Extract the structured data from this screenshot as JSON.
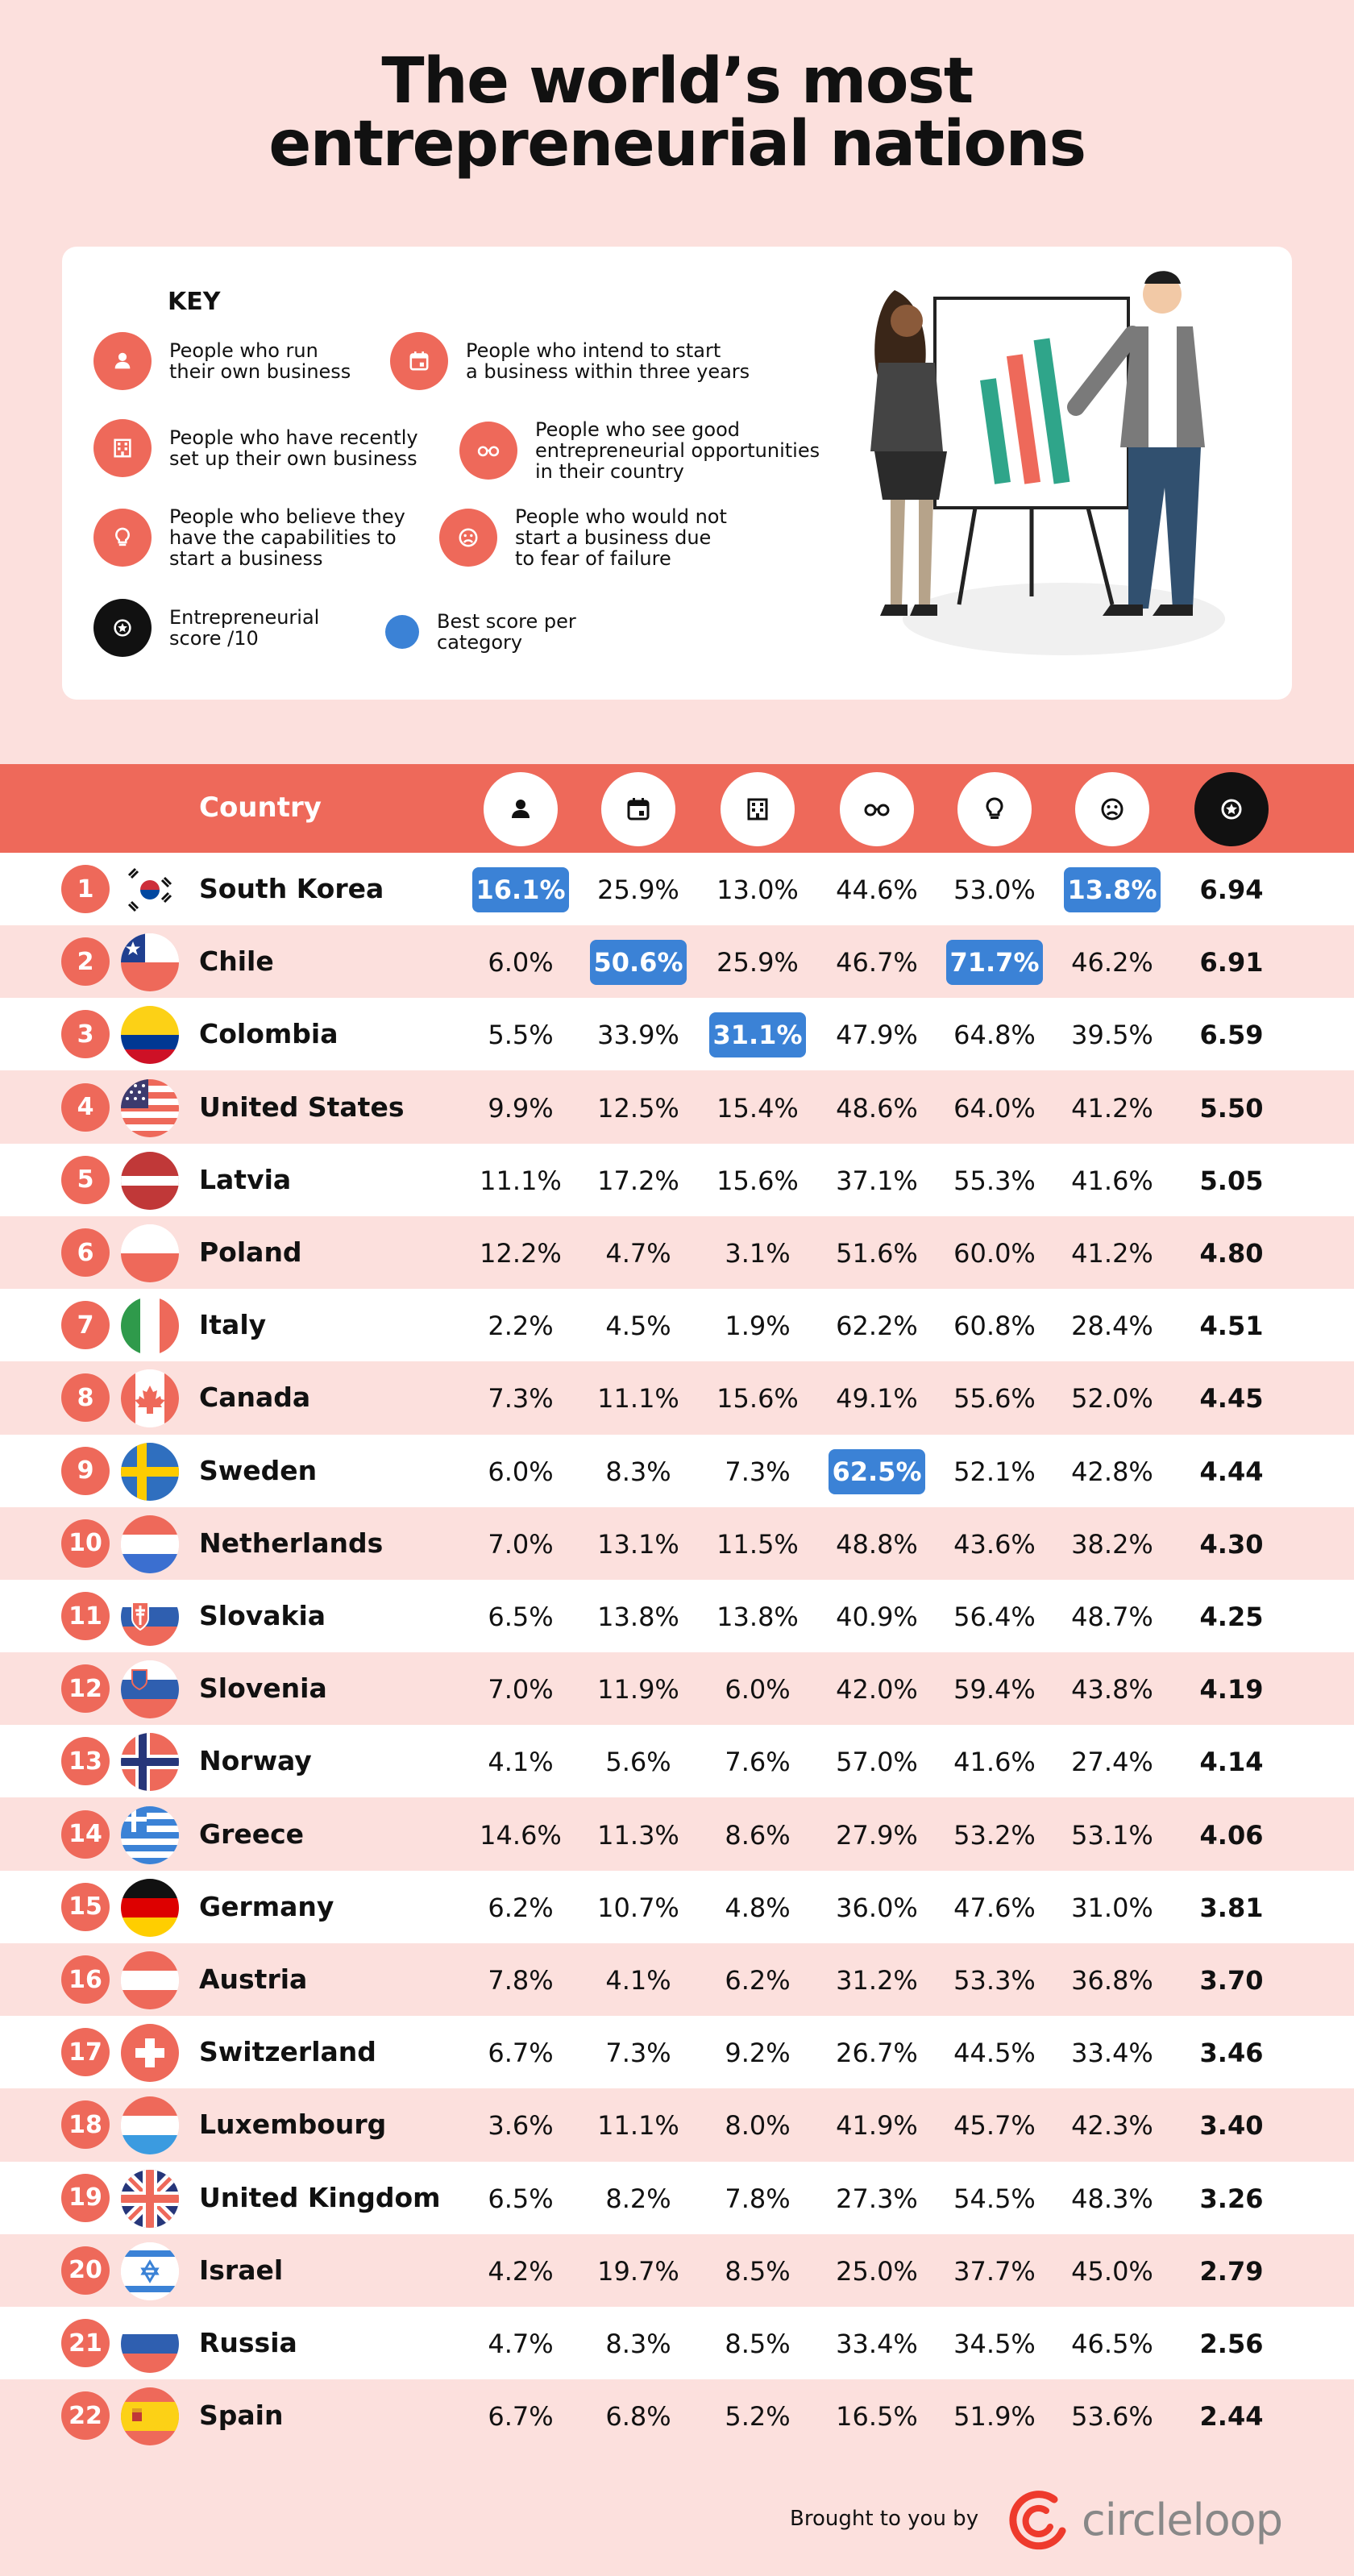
{
  "title_line1": "The world’s most",
  "title_line2": "entrepreneurial nations",
  "key": {
    "heading": "KEY",
    "items": [
      {
        "icon": "person-icon",
        "text": "People who run\ntheir own business"
      },
      {
        "icon": "calendar-icon",
        "text": "People who intend to start\na business within three years"
      },
      {
        "icon": "building-icon",
        "text": "People who have recently\nset up their own business"
      },
      {
        "icon": "glasses-icon",
        "text": "People who see good\nentrepreneurial opportunities\nin their country"
      },
      {
        "icon": "lightbulb-icon",
        "text": "People who believe they\nhave the capabilities to\nstart a business"
      },
      {
        "icon": "worried-face-icon",
        "text": "People who would not\nstart a business due\nto fear of failure"
      },
      {
        "icon": "star-badge-icon",
        "text": "Entrepreneurial\nscore /10"
      },
      {
        "icon": "blue-dot-icon",
        "text": "Best score per\ncategory"
      }
    ]
  },
  "colors": {
    "accent": "#ee695a",
    "pink_bg": "#fce0dd",
    "best": "#3b82d6",
    "black": "#111111"
  },
  "table_header": {
    "country_label": "Country"
  },
  "chart_data": {
    "type": "table",
    "columns": [
      "run_own_business",
      "intend_to_start_within_three_years",
      "recently_set_up",
      "see_good_opportunities",
      "believe_capabilities",
      "fear_of_failure",
      "entrepreneurial_score"
    ],
    "column_icons": [
      "person-icon",
      "calendar-icon",
      "building-icon",
      "glasses-icon",
      "lightbulb-icon",
      "worried-face-icon",
      "star-badge-icon"
    ],
    "rows": [
      {
        "rank": "1",
        "country": "South Korea",
        "flag": "south-korea-flag-icon",
        "values": [
          "16.1%",
          "25.9%",
          "13.0%",
          "44.6%",
          "53.0%",
          "13.8%",
          "6.94"
        ],
        "best": [
          0,
          5
        ]
      },
      {
        "rank": "2",
        "country": "Chile",
        "flag": "chile-flag-icon",
        "values": [
          "6.0%",
          "50.6%",
          "25.9%",
          "46.7%",
          "71.7%",
          "46.2%",
          "6.91"
        ],
        "best": [
          1,
          4
        ]
      },
      {
        "rank": "3",
        "country": "Colombia",
        "flag": "colombia-flag-icon",
        "values": [
          "5.5%",
          "33.9%",
          "31.1%",
          "47.9%",
          "64.8%",
          "39.5%",
          "6.59"
        ],
        "best": [
          2
        ]
      },
      {
        "rank": "4",
        "country": "United States",
        "flag": "united-states-flag-icon",
        "values": [
          "9.9%",
          "12.5%",
          "15.4%",
          "48.6%",
          "64.0%",
          "41.2%",
          "5.50"
        ],
        "best": []
      },
      {
        "rank": "5",
        "country": "Latvia",
        "flag": "latvia-flag-icon",
        "values": [
          "11.1%",
          "17.2%",
          "15.6%",
          "37.1%",
          "55.3%",
          "41.6%",
          "5.05"
        ],
        "best": []
      },
      {
        "rank": "6",
        "country": "Poland",
        "flag": "poland-flag-icon",
        "values": [
          "12.2%",
          "4.7%",
          "3.1%",
          "51.6%",
          "60.0%",
          "41.2%",
          "4.80"
        ],
        "best": []
      },
      {
        "rank": "7",
        "country": "Italy",
        "flag": "italy-flag-icon",
        "values": [
          "2.2%",
          "4.5%",
          "1.9%",
          "62.2%",
          "60.8%",
          "28.4%",
          "4.51"
        ],
        "best": []
      },
      {
        "rank": "8",
        "country": "Canada",
        "flag": "canada-flag-icon",
        "values": [
          "7.3%",
          "11.1%",
          "15.6%",
          "49.1%",
          "55.6%",
          "52.0%",
          "4.45"
        ],
        "best": []
      },
      {
        "rank": "9",
        "country": "Sweden",
        "flag": "sweden-flag-icon",
        "values": [
          "6.0%",
          "8.3%",
          "7.3%",
          "62.5%",
          "52.1%",
          "42.8%",
          "4.44"
        ],
        "best": [
          3
        ]
      },
      {
        "rank": "10",
        "country": "Netherlands",
        "flag": "netherlands-flag-icon",
        "values": [
          "7.0%",
          "13.1%",
          "11.5%",
          "48.8%",
          "43.6%",
          "38.2%",
          "4.30"
        ],
        "best": []
      },
      {
        "rank": "11",
        "country": "Slovakia",
        "flag": "slovakia-flag-icon",
        "values": [
          "6.5%",
          "13.8%",
          "13.8%",
          "40.9%",
          "56.4%",
          "48.7%",
          "4.25"
        ],
        "best": []
      },
      {
        "rank": "12",
        "country": "Slovenia",
        "flag": "slovenia-flag-icon",
        "values": [
          "7.0%",
          "11.9%",
          "6.0%",
          "42.0%",
          "59.4%",
          "43.8%",
          "4.19"
        ],
        "best": []
      },
      {
        "rank": "13",
        "country": "Norway",
        "flag": "norway-flag-icon",
        "values": [
          "4.1%",
          "5.6%",
          "7.6%",
          "57.0%",
          "41.6%",
          "27.4%",
          "4.14"
        ],
        "best": []
      },
      {
        "rank": "14",
        "country": "Greece",
        "flag": "greece-flag-icon",
        "values": [
          "14.6%",
          "11.3%",
          "8.6%",
          "27.9%",
          "53.2%",
          "53.1%",
          "4.06"
        ],
        "best": []
      },
      {
        "rank": "15",
        "country": "Germany",
        "flag": "germany-flag-icon",
        "values": [
          "6.2%",
          "10.7%",
          "4.8%",
          "36.0%",
          "47.6%",
          "31.0%",
          "3.81"
        ],
        "best": []
      },
      {
        "rank": "16",
        "country": "Austria",
        "flag": "austria-flag-icon",
        "values": [
          "7.8%",
          "4.1%",
          "6.2%",
          "31.2%",
          "53.3%",
          "36.8%",
          "3.70"
        ],
        "best": []
      },
      {
        "rank": "17",
        "country": "Switzerland",
        "flag": "switzerland-flag-icon",
        "values": [
          "6.7%",
          "7.3%",
          "9.2%",
          "26.7%",
          "44.5%",
          "33.4%",
          "3.46"
        ],
        "best": []
      },
      {
        "rank": "18",
        "country": "Luxembourg",
        "flag": "luxembourg-flag-icon",
        "values": [
          "3.6%",
          "11.1%",
          "8.0%",
          "41.9%",
          "45.7%",
          "42.3%",
          "3.40"
        ],
        "best": []
      },
      {
        "rank": "19",
        "country": "United Kingdom",
        "flag": "united-kingdom-flag-icon",
        "values": [
          "6.5%",
          "8.2%",
          "7.8%",
          "27.3%",
          "54.5%",
          "48.3%",
          "3.26"
        ],
        "best": []
      },
      {
        "rank": "20",
        "country": "Israel",
        "flag": "israel-flag-icon",
        "values": [
          "4.2%",
          "19.7%",
          "8.5%",
          "25.0%",
          "37.7%",
          "45.0%",
          "2.79"
        ],
        "best": []
      },
      {
        "rank": "21",
        "country": "Russia",
        "flag": "russia-flag-icon",
        "values": [
          "4.7%",
          "8.3%",
          "8.5%",
          "33.4%",
          "34.5%",
          "46.5%",
          "2.56"
        ],
        "best": []
      },
      {
        "rank": "22",
        "country": "Spain",
        "flag": "spain-flag-icon",
        "values": [
          "6.7%",
          "6.8%",
          "5.2%",
          "16.5%",
          "51.9%",
          "53.6%",
          "2.44"
        ],
        "best": []
      }
    ]
  },
  "footer": {
    "credit": "Brought to you by",
    "brand": "circleloop"
  }
}
